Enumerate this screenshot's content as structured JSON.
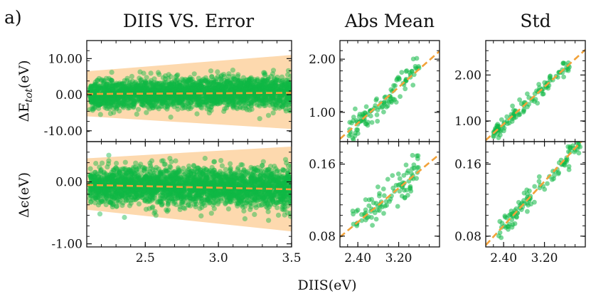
{
  "panel_label": "a)",
  "xlabel": "DIIS(eV)",
  "titles": {
    "left": "DIIS VS. Error",
    "mid": "Abs Mean",
    "right": "Std"
  },
  "colors": {
    "points": "#10b845",
    "band": "#fdd9ae",
    "fit": "#f2a23a"
  },
  "chart_data": [
    {
      "id": "etot-error",
      "type": "scatter",
      "title": "DIIS VS. Error",
      "xlabel": "",
      "ylabel": "ΔE_tot(eV)",
      "xlim": [
        2.1,
        3.5
      ],
      "ylim": [
        -13,
        15
      ],
      "yticks": [
        10,
        0,
        -10
      ],
      "ytick_labels": [
        "10.00",
        "0.00",
        "-10.00"
      ],
      "x_minor_ticks": [
        2.2,
        2.3,
        2.4,
        2.5,
        2.6,
        2.7,
        2.8,
        2.9,
        3.0,
        3.1,
        3.2,
        3.3,
        3.4
      ],
      "n_points": 2600,
      "center_start": 0.0,
      "center_end": 1.0,
      "spread_start": 1.8,
      "spread_end": 2.2,
      "band": {
        "lower_start": -6,
        "lower_end": -9.5,
        "upper_start": 6.5,
        "upper_end": 11
      },
      "fit": {
        "y_start": 0.2,
        "y_end": 0.5
      }
    },
    {
      "id": "eps-error",
      "type": "scatter",
      "title": "",
      "xlabel": "DIIS(eV)",
      "ylabel": "Δϵ(eV)",
      "xlim": [
        2.1,
        3.5
      ],
      "ylim": [
        -1.05,
        0.65
      ],
      "yticks": [
        0,
        -1
      ],
      "ytick_labels": [
        "0.00",
        "-1.00"
      ],
      "xticks": [
        2.5,
        3.0,
        3.5
      ],
      "xtick_labels": [
        "2.5",
        "3.0",
        "3.5"
      ],
      "x_minor_ticks": [
        2.2,
        2.3,
        2.4,
        2.5,
        2.6,
        2.7,
        2.8,
        2.9,
        3.0,
        3.1,
        3.2,
        3.3,
        3.4
      ],
      "n_points": 2600,
      "center_start": -0.05,
      "center_end": -0.1,
      "spread_start": 0.14,
      "spread_end": 0.17,
      "band": {
        "lower_start": -0.45,
        "lower_end": -0.8,
        "upper_start": 0.38,
        "upper_end": 0.57
      },
      "fit": {
        "y_start": -0.05,
        "y_end": -0.12
      }
    },
    {
      "id": "etot-absmean",
      "type": "scatter",
      "title": "Abs Mean",
      "xlim": [
        2.05,
        4.0
      ],
      "ylim": [
        0.45,
        2.35
      ],
      "yticks": [
        2,
        1
      ],
      "ytick_labels": [
        "2.00",
        "1.00"
      ],
      "n_points": 110,
      "fit_at_xlim": [
        0.5,
        2.15
      ],
      "x_range": [
        2.2,
        3.6
      ],
      "scatter": 0.13
    },
    {
      "id": "eps-absmean",
      "type": "scatter",
      "title": "",
      "xlim": [
        2.05,
        4.0
      ],
      "ylim": [
        0.068,
        0.185
      ],
      "yticks": [
        0.16,
        0.08
      ],
      "ytick_labels": [
        "0.16",
        "0.08"
      ],
      "xticks": [
        2.4,
        3.2
      ],
      "xtick_labels": [
        "2.40",
        "3.20"
      ],
      "n_points": 95,
      "fit_at_xlim": [
        0.079,
        0.171
      ],
      "x_range": [
        2.3,
        3.6
      ],
      "scatter": 0.01
    },
    {
      "id": "etot-std",
      "type": "scatter",
      "title": "Std",
      "xlim": [
        2.05,
        4.0
      ],
      "ylim": [
        0.55,
        2.75
      ],
      "yticks": [
        2,
        1
      ],
      "ytick_labels": [
        "2.00",
        "1.00"
      ],
      "n_points": 110,
      "fit_at_xlim": [
        0.58,
        2.55
      ],
      "x_range": [
        2.2,
        3.7
      ],
      "scatter": 0.09
    },
    {
      "id": "eps-std",
      "type": "scatter",
      "title": "",
      "xlim": [
        2.05,
        4.0
      ],
      "ylim": [
        0.068,
        0.185
      ],
      "yticks": [
        0.16,
        0.08
      ],
      "ytick_labels": [
        "0.16",
        "0.08"
      ],
      "xticks": [
        2.4,
        3.2
      ],
      "xtick_labels": [
        "2.40",
        "3.20"
      ],
      "n_points": 110,
      "fit_at_xlim": [
        0.07,
        0.19
      ],
      "x_range": [
        2.3,
        3.9
      ],
      "scatter": 0.006
    }
  ]
}
